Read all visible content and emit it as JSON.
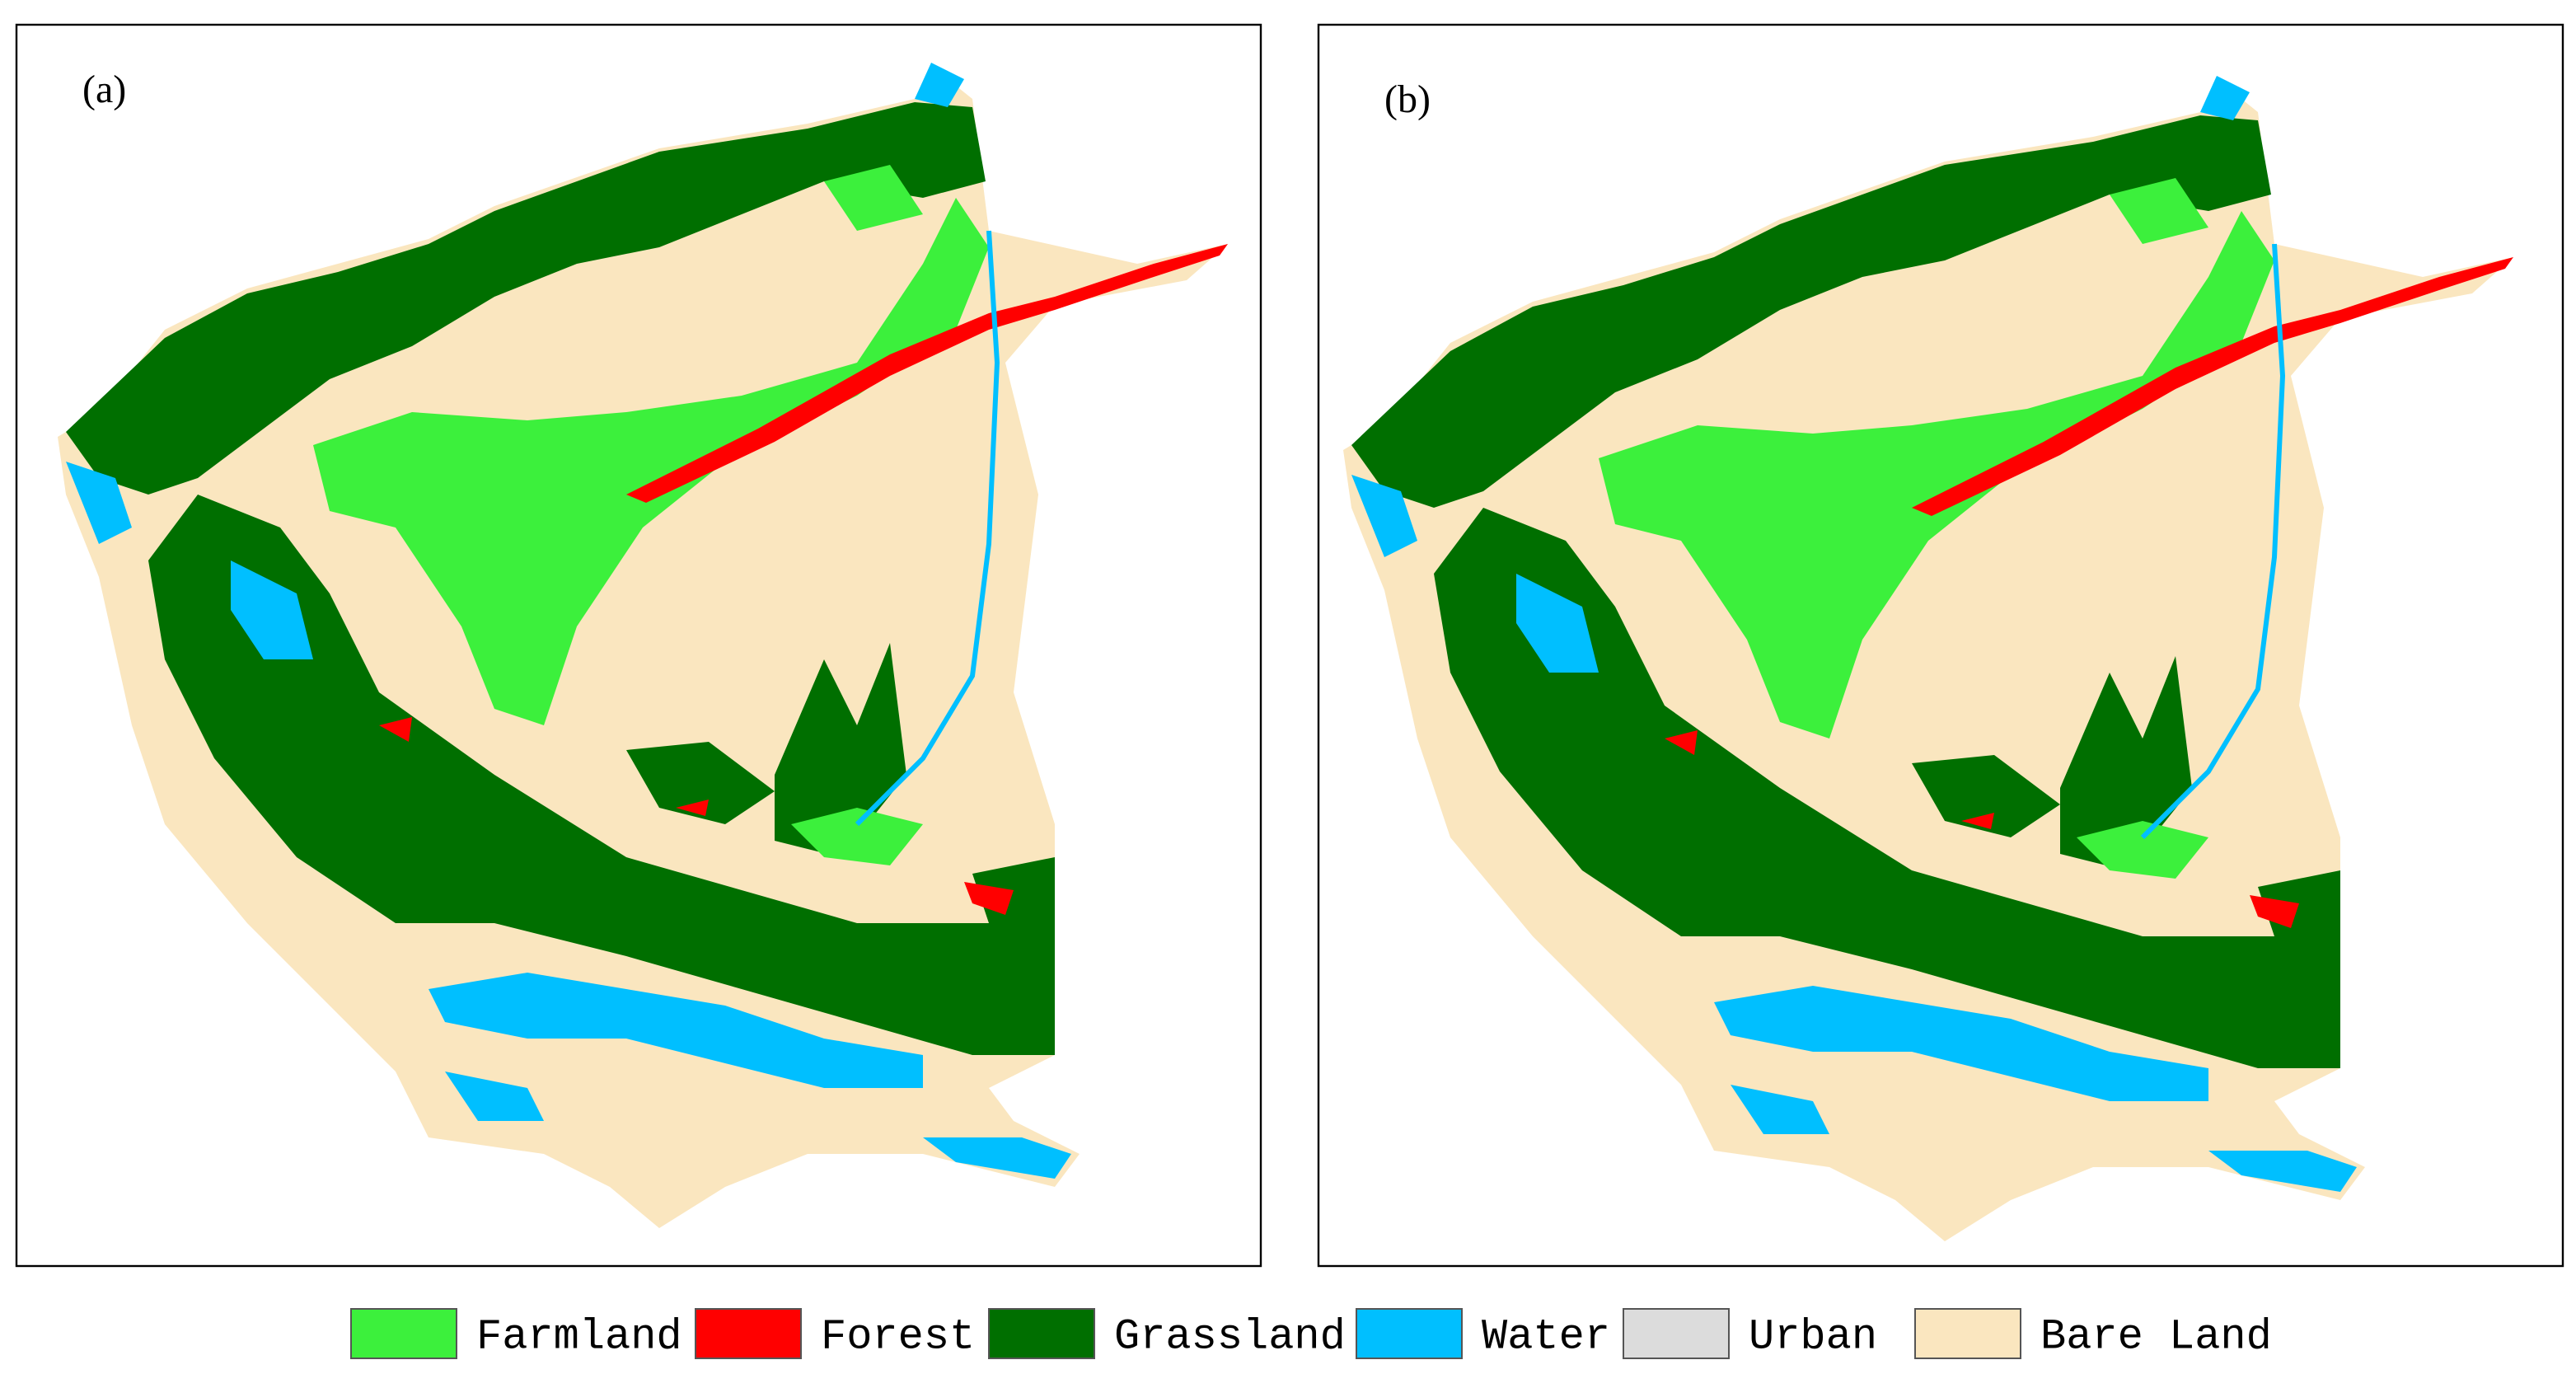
{
  "panels": [
    {
      "label": "(a)"
    },
    {
      "label": "(b)"
    }
  ],
  "legend": [
    {
      "label": "Farmland",
      "color": "#3cf03c"
    },
    {
      "label": "Forest",
      "color": "#ff0000"
    },
    {
      "label": "Grassland",
      "color": "#006f00"
    },
    {
      "label": "Water",
      "color": "#00bfff"
    },
    {
      "label": "Urban",
      "color": "#dcdcdc"
    },
    {
      "label": "Bare Land",
      "color": "#fae6bf"
    }
  ]
}
